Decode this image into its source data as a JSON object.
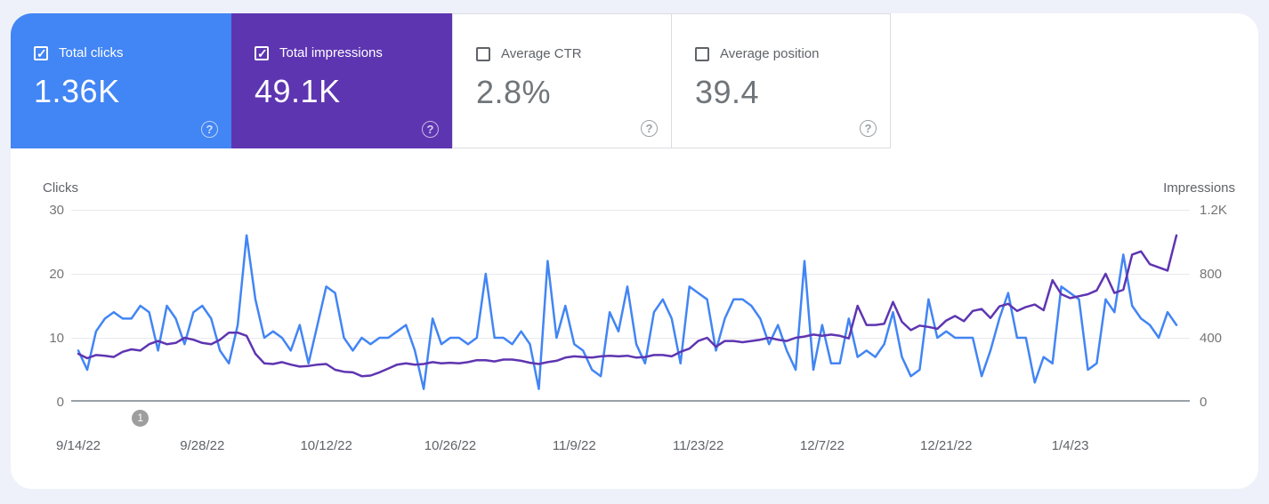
{
  "app": "Google Search Console — Performance",
  "metric_cards": [
    {
      "label": "Total clicks",
      "value": "1.36K",
      "checked": true,
      "bg": "#4285f4",
      "text_on_color": true
    },
    {
      "label": "Total impressions",
      "value": "49.1K",
      "checked": true,
      "bg": "#5e35b1",
      "text_on_color": true
    },
    {
      "label": "Average CTR",
      "value": "2.8%",
      "checked": false,
      "bg": "#ffffff",
      "text_on_color": false
    },
    {
      "label": "Average position",
      "value": "39.4",
      "checked": false,
      "bg": "#ffffff",
      "text_on_color": false
    }
  ],
  "help_icon_glyph": "?",
  "chart_data": {
    "type": "line",
    "grid": true,
    "left_axis": {
      "label": "Clicks",
      "ticks": [
        "0",
        "10",
        "20",
        "30"
      ],
      "range": [
        0,
        30
      ]
    },
    "right_axis": {
      "label": "Impressions",
      "ticks": [
        "0",
        "400",
        "800",
        "1.2K"
      ],
      "range": [
        0,
        1200
      ]
    },
    "x_ticks": {
      "labels": [
        "9/14/22",
        "9/28/22",
        "10/12/22",
        "10/26/22",
        "11/9/22",
        "11/23/22",
        "12/7/22",
        "12/21/22",
        "1/4/23"
      ],
      "day_index": [
        0,
        14,
        28,
        42,
        56,
        70,
        84,
        98,
        112
      ]
    },
    "annotation_badge": {
      "text": "1",
      "day_index": 7
    },
    "series": [
      {
        "name": "Total clicks",
        "axis": "left",
        "color": "#4285f4",
        "values": [
          8,
          5,
          11,
          13,
          14,
          13,
          13,
          15,
          14,
          8,
          15,
          13,
          9,
          14,
          15,
          13,
          8,
          6,
          12,
          26,
          16,
          10,
          11,
          10,
          8,
          12,
          6,
          12,
          18,
          17,
          10,
          8,
          10,
          9,
          10,
          10,
          11,
          12,
          8,
          2,
          13,
          9,
          10,
          10,
          9,
          10,
          20,
          10,
          10,
          9,
          11,
          9,
          2,
          22,
          10,
          15,
          9,
          8,
          5,
          4,
          14,
          11,
          18,
          9,
          6,
          14,
          16,
          13,
          6,
          18,
          17,
          16,
          8,
          13,
          16,
          16,
          15,
          13,
          9,
          12,
          8,
          5,
          22,
          5,
          12,
          6,
          6,
          13,
          7,
          8,
          7,
          9,
          14,
          7,
          4,
          5,
          16,
          10,
          11,
          10,
          10,
          10,
          4,
          8,
          13,
          17,
          10,
          10,
          3,
          7,
          6,
          18,
          17,
          16,
          5,
          6,
          16,
          14,
          23,
          15,
          13,
          12,
          10,
          14,
          12
        ]
      },
      {
        "name": "Total impressions",
        "axis": "right",
        "color": "#5e35b1",
        "values": [
          300,
          272,
          292,
          288,
          280,
          312,
          328,
          320,
          360,
          380,
          360,
          368,
          400,
          388,
          368,
          360,
          388,
          432,
          432,
          412,
          300,
          240,
          236,
          248,
          232,
          220,
          224,
          232,
          236,
          200,
          188,
          184,
          160,
          164,
          184,
          208,
          232,
          240,
          232,
          236,
          248,
          240,
          244,
          240,
          248,
          260,
          260,
          252,
          264,
          264,
          256,
          244,
          236,
          248,
          256,
          276,
          284,
          280,
          276,
          284,
          288,
          284,
          288,
          276,
          280,
          292,
          292,
          284,
          312,
          332,
          380,
          400,
          344,
          380,
          380,
          372,
          380,
          388,
          400,
          388,
          380,
          400,
          408,
          420,
          412,
          420,
          412,
          396,
          600,
          480,
          480,
          488,
          624,
          500,
          448,
          476,
          468,
          456,
          508,
          536,
          504,
          568,
          580,
          524,
          596,
          612,
          568,
          592,
          608,
          572,
          760,
          672,
          648,
          660,
          672,
          696,
          800,
          680,
          700,
          920,
          940,
          860,
          840,
          820,
          1040
        ]
      }
    ],
    "colors": {
      "grid": "#e8eaed",
      "baseline": "#9aa0a6",
      "tick_text": "#757575"
    }
  }
}
